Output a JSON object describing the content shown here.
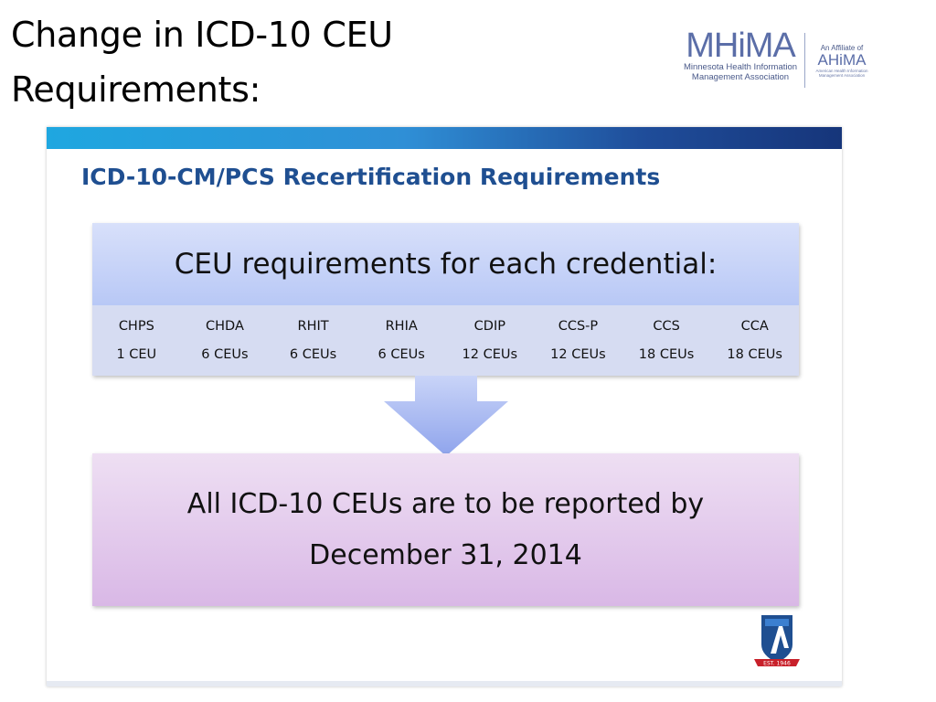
{
  "slide": {
    "title_line1": "Change in ICD-10 CEU",
    "title_line2": "Requirements:"
  },
  "logo": {
    "mark": "MHiMA",
    "sub_line1": "Minnesota Health Information",
    "sub_line2": "Management Association",
    "affiliate_label": "An Affiliate of",
    "affiliate_mark": "AHiMA",
    "affiliate_sub": "American Health Information Management Association"
  },
  "inner": {
    "heading": "ICD-10-CM/PCS Recertification Requirements",
    "requirements_header": "CEU requirements for each credential:",
    "credentials": [
      {
        "name": "CHPS",
        "ceus": "1 CEU"
      },
      {
        "name": "CHDA",
        "ceus": "6 CEUs"
      },
      {
        "name": "RHIT",
        "ceus": "6 CEUs"
      },
      {
        "name": "RHIA",
        "ceus": "6 CEUs"
      },
      {
        "name": "CDIP",
        "ceus": "12 CEUs"
      },
      {
        "name": "CCS-P",
        "ceus": "12 CEUs"
      },
      {
        "name": "CCS",
        "ceus": "18 CEUs"
      },
      {
        "name": "CCA",
        "ceus": "18 CEUs"
      }
    ],
    "report_line1": "All ICD-10 CEUs are to be reported by",
    "report_line2": "December 31, 2014",
    "emblem_text": "EST. 1946"
  },
  "colors": {
    "heading_blue": "#1f4f91",
    "req_header_bg": "#c8d4f8",
    "table_bg": "#d6dcf2",
    "arrow_fill": "#a8b9f2",
    "report_bg": "#e2c8ec",
    "logo_blue": "#5b6ea8"
  }
}
